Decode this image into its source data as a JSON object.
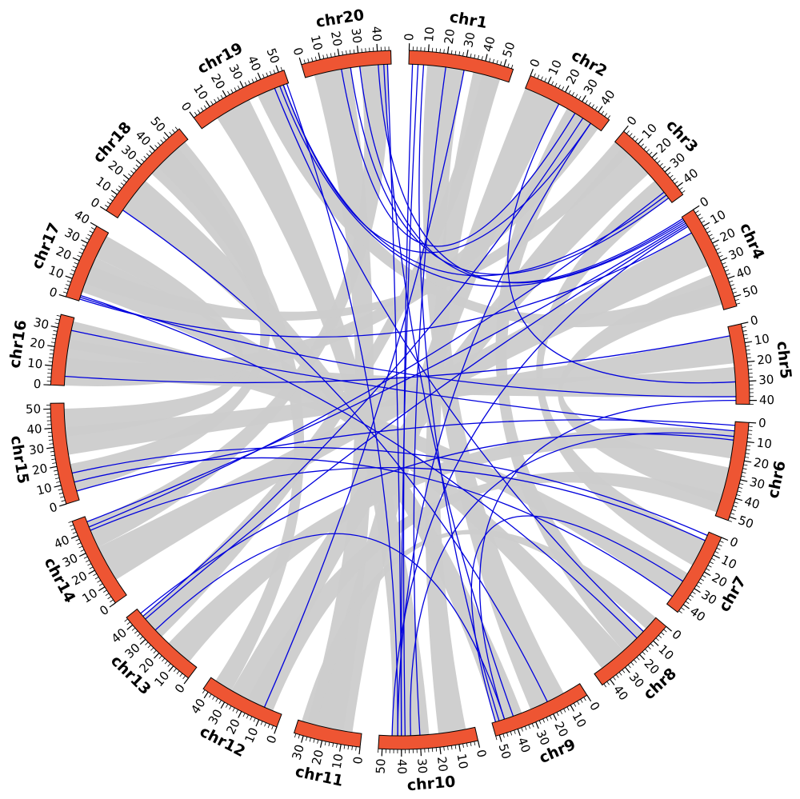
{
  "chart_data": {
    "type": "circos",
    "ideogram_color": "#ee5533",
    "ribbon_color": "#cccccc",
    "link_color": "#0000dd",
    "minor_tick_interval": 2,
    "chromosomes": [
      {
        "name": "chr1",
        "length": 55,
        "ticks": [
          0,
          10,
          20,
          30,
          40,
          50
        ]
      },
      {
        "name": "chr2",
        "length": 47,
        "ticks": [
          0,
          10,
          20,
          30,
          40
        ]
      },
      {
        "name": "chr3",
        "length": 45,
        "ticks": [
          0,
          10,
          20,
          30,
          40
        ]
      },
      {
        "name": "chr4",
        "length": 55,
        "ticks": [
          0,
          10,
          20,
          30,
          40,
          50
        ]
      },
      {
        "name": "chr5",
        "length": 42,
        "ticks": [
          0,
          10,
          20,
          30,
          40
        ]
      },
      {
        "name": "chr6",
        "length": 52,
        "ticks": [
          0,
          10,
          20,
          30,
          40,
          50
        ]
      },
      {
        "name": "chr7",
        "length": 45,
        "ticks": [
          0,
          10,
          20,
          30,
          40
        ]
      },
      {
        "name": "chr8",
        "length": 45,
        "ticks": [
          0,
          10,
          20,
          30,
          40
        ]
      },
      {
        "name": "chr9",
        "length": 52,
        "ticks": [
          0,
          10,
          20,
          30,
          40,
          50
        ]
      },
      {
        "name": "chr10",
        "length": 52,
        "ticks": [
          0,
          10,
          20,
          30,
          40,
          50
        ]
      },
      {
        "name": "chr11",
        "length": 35,
        "ticks": [
          0,
          10,
          20,
          30
        ]
      },
      {
        "name": "chr12",
        "length": 43,
        "ticks": [
          0,
          10,
          20,
          30,
          40
        ]
      },
      {
        "name": "chr13",
        "length": 45,
        "ticks": [
          0,
          10,
          20,
          30,
          40
        ]
      },
      {
        "name": "chr14",
        "length": 48,
        "ticks": [
          0,
          10,
          20,
          30,
          40
        ]
      },
      {
        "name": "chr15",
        "length": 53,
        "ticks": [
          0,
          10,
          20,
          30,
          40,
          50
        ]
      },
      {
        "name": "chr16",
        "length": 37,
        "ticks": [
          0,
          10,
          20,
          30
        ]
      },
      {
        "name": "chr17",
        "length": 40,
        "ticks": [
          0,
          10,
          20,
          30,
          40
        ]
      },
      {
        "name": "chr18",
        "length": 57,
        "ticks": [
          0,
          10,
          20,
          30,
          40,
          50
        ]
      },
      {
        "name": "chr19",
        "length": 53,
        "ticks": [
          0,
          10,
          20,
          30,
          40,
          50
        ]
      },
      {
        "name": "chr20",
        "length": 47,
        "ticks": [
          0,
          10,
          20,
          30,
          40
        ]
      }
    ],
    "ribbons": [
      {
        "source": [
          "chr1",
          10,
          30
        ],
        "target": [
          "chr9",
          10,
          30
        ]
      },
      {
        "source": [
          "chr1",
          35,
          50
        ],
        "target": [
          "chr10",
          5,
          20
        ]
      },
      {
        "source": [
          "chr2",
          0,
          20
        ],
        "target": [
          "chr11",
          5,
          25
        ]
      },
      {
        "source": [
          "chr2",
          25,
          40
        ],
        "target": [
          "chr8",
          10,
          25
        ]
      },
      {
        "source": [
          "chr3",
          5,
          25
        ],
        "target": [
          "chr12",
          10,
          30
        ]
      },
      {
        "source": [
          "chr3",
          30,
          42
        ],
        "target": [
          "chr7",
          5,
          20
        ]
      },
      {
        "source": [
          "chr4",
          10,
          30
        ],
        "target": [
          "chr14",
          10,
          30
        ]
      },
      {
        "source": [
          "chr4",
          35,
          50
        ],
        "target": [
          "chr6",
          25,
          45
        ]
      },
      {
        "source": [
          "chr5",
          5,
          20
        ],
        "target": [
          "chr15",
          25,
          40
        ]
      },
      {
        "source": [
          "chr5",
          22,
          38
        ],
        "target": [
          "chr16",
          5,
          25
        ]
      },
      {
        "source": [
          "chr6",
          5,
          20
        ],
        "target": [
          "chr13",
          5,
          20
        ]
      },
      {
        "source": [
          "chr7",
          25,
          40
        ],
        "target": [
          "chr16",
          20,
          35
        ]
      },
      {
        "source": [
          "chr8",
          25,
          40
        ],
        "target": [
          "chr17",
          5,
          25
        ]
      },
      {
        "source": [
          "chr9",
          35,
          50
        ],
        "target": [
          "chr18",
          5,
          25
        ]
      },
      {
        "source": [
          "chr10",
          25,
          45
        ],
        "target": [
          "chr19",
          10,
          30
        ]
      },
      {
        "source": [
          "chr11",
          10,
          30
        ],
        "target": [
          "chr20",
          5,
          25
        ]
      },
      {
        "source": [
          "chr12",
          30,
          40
        ],
        "target": [
          "chr18",
          30,
          50
        ]
      },
      {
        "source": [
          "chr13",
          25,
          40
        ],
        "target": [
          "chr1",
          40,
          50
        ]
      },
      {
        "source": [
          "chr14",
          30,
          45
        ],
        "target": [
          "chr20",
          30,
          45
        ]
      },
      {
        "source": [
          "chr15",
          5,
          20
        ],
        "target": [
          "chr18",
          35,
          55
        ]
      },
      {
        "source": [
          "chr15",
          35,
          50
        ],
        "target": [
          "chr17",
          25,
          38
        ]
      },
      {
        "source": [
          "chr16",
          0,
          15
        ],
        "target": [
          "chr2",
          30,
          45
        ]
      },
      {
        "source": [
          "chr17",
          10,
          20
        ],
        "target": [
          "chr3",
          0,
          10
        ]
      },
      {
        "source": [
          "chr19",
          35,
          50
        ],
        "target": [
          "chr4",
          40,
          52
        ]
      },
      {
        "source": [
          "chr12",
          5,
          20
        ],
        "target": [
          "chr6",
          40,
          50
        ]
      },
      {
        "source": [
          "chr11",
          25,
          33
        ],
        "target": [
          "chr8",
          0,
          8
        ]
      }
    ],
    "links": [
      {
        "source": [
          "chr1",
          2
        ],
        "target": [
          "chr10",
          38
        ]
      },
      {
        "source": [
          "chr1",
          5
        ],
        "target": [
          "chr10",
          40
        ]
      },
      {
        "source": [
          "chr1",
          8
        ],
        "target": [
          "chr9",
          48
        ]
      },
      {
        "source": [
          "chr2",
          30
        ],
        "target": [
          "chr20",
          20
        ]
      },
      {
        "source": [
          "chr2",
          35
        ],
        "target": [
          "chr13",
          40
        ]
      },
      {
        "source": [
          "chr2",
          40
        ],
        "target": [
          "chr10",
          42
        ]
      },
      {
        "source": [
          "chr3",
          40
        ],
        "target": [
          "chr19",
          50
        ]
      },
      {
        "source": [
          "chr3",
          42
        ],
        "target": [
          "chr20",
          25
        ]
      },
      {
        "source": [
          "chr4",
          2
        ],
        "target": [
          "chr20",
          40
        ]
      },
      {
        "source": [
          "chr4",
          3
        ],
        "target": [
          "chr19",
          48
        ]
      },
      {
        "source": [
          "chr4",
          4
        ],
        "target": [
          "chr14",
          45
        ]
      },
      {
        "source": [
          "chr4",
          5
        ],
        "target": [
          "chr13",
          38
        ]
      },
      {
        "source": [
          "chr4",
          6
        ],
        "target": [
          "chr10",
          45
        ]
      },
      {
        "source": [
          "chr5",
          30
        ],
        "target": [
          "chr2",
          20
        ]
      },
      {
        "source": [
          "chr5",
          38
        ],
        "target": [
          "chr17",
          2
        ]
      },
      {
        "source": [
          "chr5",
          40
        ],
        "target": [
          "chr9",
          45
        ]
      },
      {
        "source": [
          "chr6",
          2
        ],
        "target": [
          "chr15",
          5
        ]
      },
      {
        "source": [
          "chr6",
          5
        ],
        "target": [
          "chr16",
          30
        ]
      },
      {
        "source": [
          "chr6",
          8
        ],
        "target": [
          "chr10",
          35
        ]
      },
      {
        "source": [
          "chr7",
          2
        ],
        "target": [
          "chr15",
          15
        ]
      },
      {
        "source": [
          "chr7",
          5
        ],
        "target": [
          "chr14",
          40
        ]
      },
      {
        "source": [
          "chr7",
          30
        ],
        "target": [
          "chr9",
          50
        ]
      },
      {
        "source": [
          "chr8",
          10
        ],
        "target": [
          "chr19",
          45
        ]
      },
      {
        "source": [
          "chr8",
          15
        ],
        "target": [
          "chr17",
          3
        ]
      },
      {
        "source": [
          "chr9",
          40
        ],
        "target": [
          "chr20",
          43
        ]
      },
      {
        "source": [
          "chr9",
          45
        ],
        "target": [
          "chr13",
          30
        ]
      },
      {
        "source": [
          "chr10",
          40
        ],
        "target": [
          "chr20",
          45
        ]
      },
      {
        "source": [
          "chr10",
          42
        ],
        "target": [
          "chr19",
          52
        ]
      },
      {
        "source": [
          "chr10",
          30
        ],
        "target": [
          "chr1",
          20
        ]
      },
      {
        "source": [
          "chr12",
          10
        ],
        "target": [
          "chr1",
          30
        ]
      },
      {
        "source": [
          "chr13",
          42
        ],
        "target": [
          "chr6",
          10
        ]
      },
      {
        "source": [
          "chr14",
          42
        ],
        "target": [
          "chr3",
          38
        ]
      },
      {
        "source": [
          "chr15",
          10
        ],
        "target": [
          "chr7",
          40
        ]
      },
      {
        "source": [
          "chr16",
          5
        ],
        "target": [
          "chr5",
          5
        ]
      },
      {
        "source": [
          "chr17",
          1
        ],
        "target": [
          "chr4",
          10
        ]
      },
      {
        "source": [
          "chr18",
          5
        ],
        "target": [
          "chr9",
          20
        ]
      },
      {
        "source": [
          "chr19",
          50
        ],
        "target": [
          "chr2",
          40
        ]
      },
      {
        "source": [
          "chr20",
          30
        ],
        "target": [
          "chr4",
          1
        ]
      }
    ]
  }
}
